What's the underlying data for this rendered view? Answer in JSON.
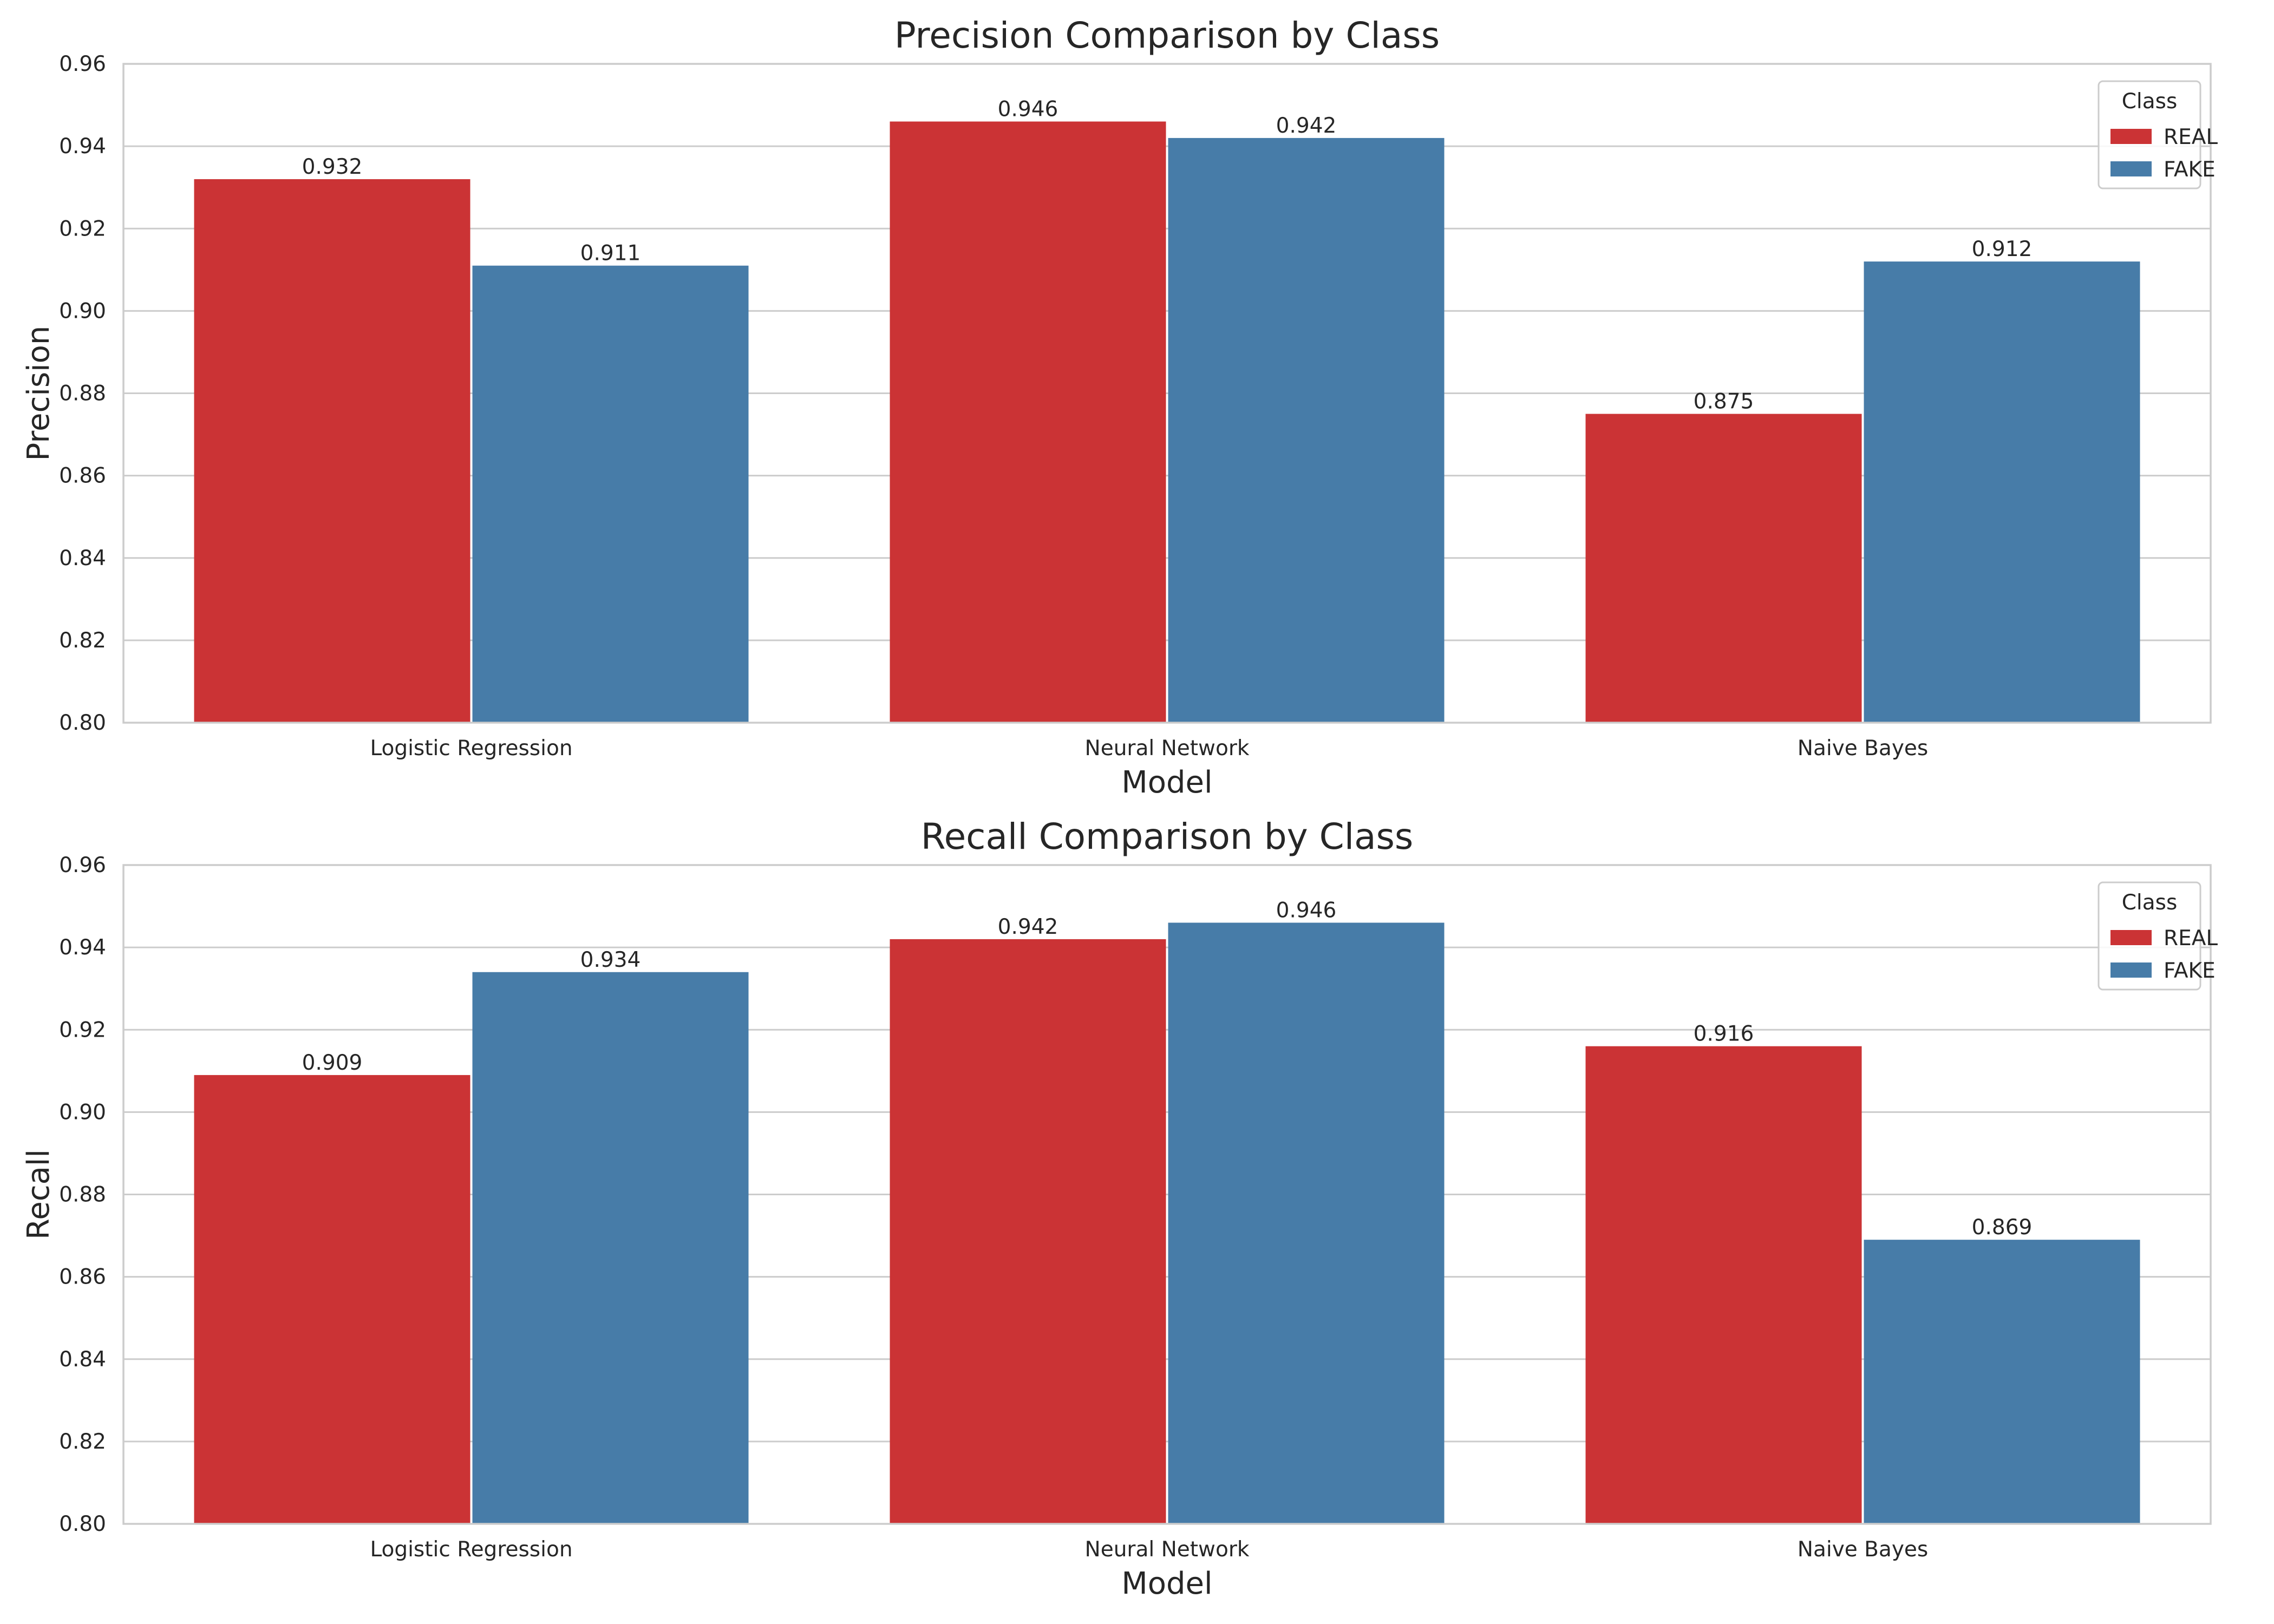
{
  "chart_data": [
    {
      "type": "bar",
      "title": "Precision Comparison by Class",
      "xlabel": "Model",
      "ylabel": "Precision",
      "categories": [
        "Logistic Regression",
        "Neural Network",
        "Naive Bayes"
      ],
      "series": [
        {
          "name": "REAL",
          "values": [
            0.932,
            0.946,
            0.875
          ],
          "labels": [
            "0.932",
            "0.946",
            "0.875"
          ]
        },
        {
          "name": "FAKE",
          "values": [
            0.911,
            0.942,
            0.912
          ],
          "labels": [
            "0.911",
            "0.942",
            "0.912"
          ]
        }
      ],
      "ylim": [
        0.8,
        0.96
      ],
      "yticks": [
        "0.80",
        "0.82",
        "0.84",
        "0.86",
        "0.88",
        "0.90",
        "0.92",
        "0.94",
        "0.96"
      ],
      "legend": {
        "title": "Class",
        "placement": "top-right"
      },
      "grid": true
    },
    {
      "type": "bar",
      "title": "Recall Comparison by Class",
      "xlabel": "Model",
      "ylabel": "Recall",
      "categories": [
        "Logistic Regression",
        "Neural Network",
        "Naive Bayes"
      ],
      "series": [
        {
          "name": "REAL",
          "values": [
            0.909,
            0.942,
            0.916
          ],
          "labels": [
            "0.909",
            "0.942",
            "0.916"
          ]
        },
        {
          "name": "FAKE",
          "values": [
            0.934,
            0.946,
            0.869
          ],
          "labels": [
            "0.934",
            "0.946",
            "0.869"
          ]
        }
      ],
      "ylim": [
        0.8,
        0.96
      ],
      "yticks": [
        "0.80",
        "0.82",
        "0.84",
        "0.86",
        "0.88",
        "0.90",
        "0.92",
        "0.94",
        "0.96"
      ],
      "legend": {
        "title": "Class",
        "placement": "top-right"
      },
      "grid": true
    }
  ],
  "colors": {
    "REAL": "#cb3335",
    "FAKE": "#477ca8"
  }
}
